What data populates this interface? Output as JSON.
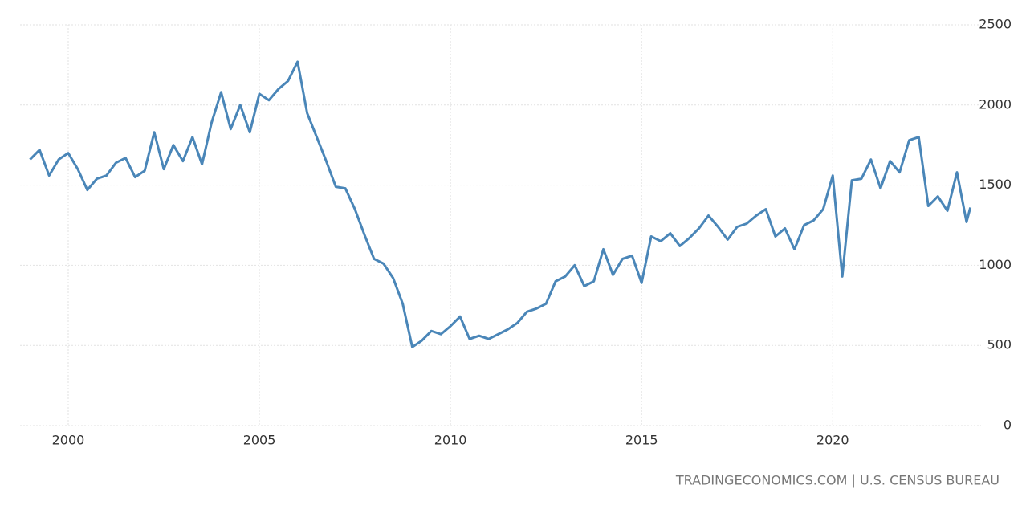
{
  "chart_data": {
    "type": "line",
    "x": [
      1999.0,
      1999.25,
      1999.5,
      1999.75,
      2000.0,
      2000.25,
      2000.5,
      2000.75,
      2001.0,
      2001.25,
      2001.5,
      2001.75,
      2002.0,
      2002.25,
      2002.5,
      2002.75,
      2003.0,
      2003.25,
      2003.5,
      2003.75,
      2004.0,
      2004.25,
      2004.5,
      2004.75,
      2005.0,
      2005.25,
      2005.5,
      2005.75,
      2006.0,
      2006.25,
      2006.5,
      2006.75,
      2007.0,
      2007.25,
      2007.5,
      2007.75,
      2008.0,
      2008.25,
      2008.5,
      2008.75,
      2009.0,
      2009.25,
      2009.5,
      2009.75,
      2010.0,
      2010.25,
      2010.5,
      2010.75,
      2011.0,
      2011.25,
      2011.5,
      2011.75,
      2012.0,
      2012.25,
      2012.5,
      2012.75,
      2013.0,
      2013.25,
      2013.5,
      2013.75,
      2014.0,
      2014.25,
      2014.5,
      2014.75,
      2015.0,
      2015.25,
      2015.5,
      2015.75,
      2016.0,
      2016.25,
      2016.5,
      2016.75,
      2017.0,
      2017.25,
      2017.5,
      2017.75,
      2018.0,
      2018.25,
      2018.5,
      2018.75,
      2019.0,
      2019.25,
      2019.5,
      2019.75,
      2020.0,
      2020.25,
      2020.5,
      2020.75,
      2021.0,
      2021.25,
      2021.5,
      2021.75,
      2022.0,
      2022.25,
      2022.5,
      2022.75,
      2023.0,
      2023.25,
      2023.5,
      2023.6
    ],
    "series": [
      {
        "color": "#4a86b8",
        "values": [
          1660,
          1720,
          1560,
          1660,
          1700,
          1600,
          1470,
          1540,
          1560,
          1640,
          1670,
          1550,
          1590,
          1830,
          1600,
          1750,
          1650,
          1800,
          1630,
          1890,
          2080,
          1850,
          2000,
          1830,
          2070,
          2030,
          2100,
          2150,
          2270,
          1950,
          1800,
          1650,
          1490,
          1480,
          1350,
          1190,
          1040,
          1010,
          920,
          760,
          490,
          530,
          590,
          570,
          620,
          680,
          540,
          560,
          540,
          570,
          600,
          640,
          710,
          730,
          760,
          900,
          930,
          1000,
          870,
          900,
          1100,
          940,
          1040,
          1060,
          890,
          1180,
          1150,
          1200,
          1120,
          1170,
          1230,
          1310,
          1240,
          1160,
          1240,
          1260,
          1310,
          1350,
          1180,
          1230,
          1100,
          1250,
          1280,
          1350,
          1560,
          930,
          1530,
          1540,
          1660,
          1480,
          1650,
          1580,
          1780,
          1800,
          1370,
          1430,
          1340,
          1580,
          1270,
          1360
        ]
      }
    ],
    "xlim": [
      1998.74,
      2023.88
    ],
    "ylim": [
      0,
      2500
    ],
    "xticks": [
      2000,
      2005,
      2010,
      2015,
      2020
    ],
    "yticks": [
      0,
      500,
      1000,
      1500,
      2000,
      2500
    ],
    "grid": true,
    "source": "TRADINGECONOMICS.COM | U.S. CENSUS BUREAU"
  }
}
